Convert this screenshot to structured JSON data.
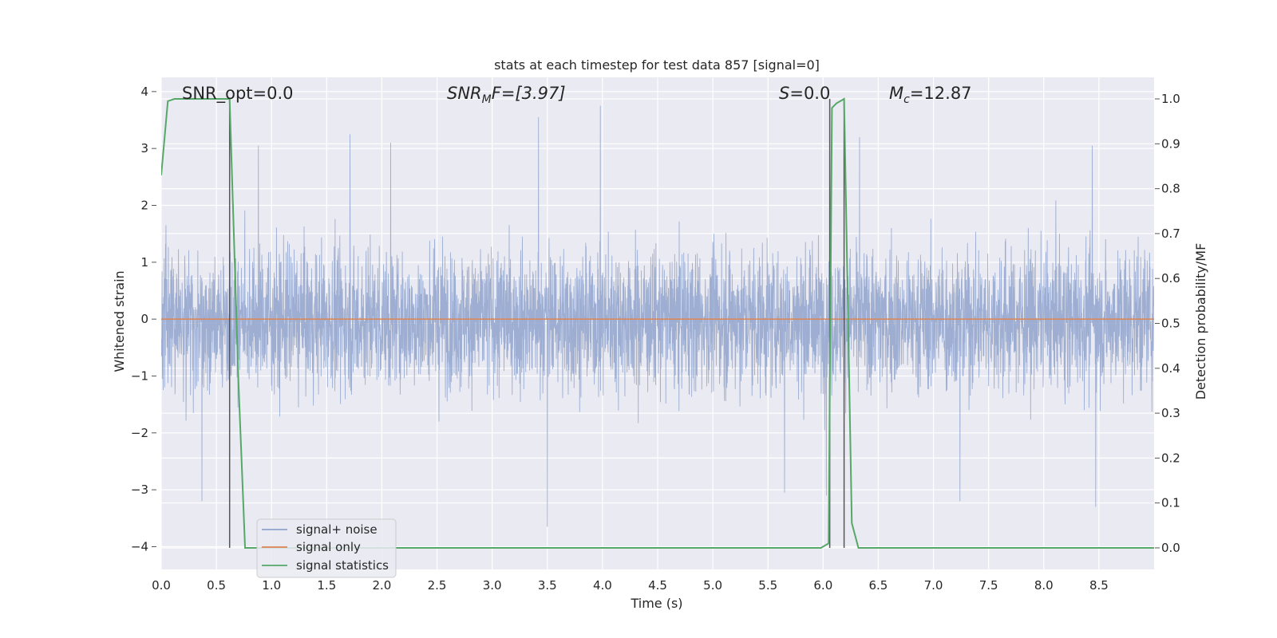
{
  "chart_data": {
    "type": "line",
    "title": "stats at each timestep for test data 857 [signal=0]",
    "xlabel": "Time (s)",
    "ylabel": "Whitened strain",
    "ylabel_right": "Detection probability/MF",
    "xlim": [
      0,
      9.0
    ],
    "ylim": [
      -4.4,
      4.25
    ],
    "ylim_right": [
      -0.048,
      1.048
    ],
    "x_ticks": [
      "0.0",
      "0.5",
      "1.0",
      "1.5",
      "2.0",
      "2.5",
      "3.0",
      "3.5",
      "4.0",
      "4.5",
      "5.0",
      "5.5",
      "6.0",
      "6.5",
      "7.0",
      "7.5",
      "8.0",
      "8.5"
    ],
    "y_ticks": [
      "−4",
      "−3",
      "−2",
      "−1",
      "0",
      "1",
      "2",
      "3",
      "4"
    ],
    "y_ticks_right": [
      "0.0",
      "0.1",
      "0.2",
      "0.3",
      "0.4",
      "0.5",
      "0.6",
      "0.7",
      "0.8",
      "0.9",
      "1.0"
    ],
    "grid": true,
    "legend_position": "lower-left",
    "annotations": {
      "snr_opt": "SNR_opt=0.0",
      "snr_mf_main": "SNR",
      "snr_mf_sub": "M",
      "snr_mf_rest": "F=[3.97]",
      "s_main": "S",
      "s_rest": "=0.0",
      "mc_main": "M",
      "mc_sub": "c",
      "mc_rest": "=12.87"
    },
    "series": [
      {
        "name": "signal+ noise",
        "color": "#8fa3cc",
        "sample_rate_hz": 512,
        "duration_s": 9.0,
        "typical_range": [
          -2.0,
          2.0
        ],
        "peaks": [
          [
            3.42,
            3.55
          ],
          [
            3.98,
            3.75
          ],
          [
            1.71,
            3.25
          ],
          [
            0.88,
            3.05
          ],
          [
            2.08,
            3.1
          ],
          [
            6.33,
            3.2
          ],
          [
            8.44,
            3.05
          ],
          [
            3.5,
            -3.65
          ],
          [
            8.47,
            -3.3
          ],
          [
            0.37,
            -3.2
          ],
          [
            6.03,
            -3.1
          ],
          [
            5.65,
            -3.05
          ],
          [
            7.24,
            -3.2
          ]
        ]
      },
      {
        "name": "signal only",
        "color": "#dd8452",
        "values": "0 at all times"
      },
      {
        "name": "signal statistics",
        "color": "#55a868",
        "axis": "right",
        "x": [
          0.0,
          0.06,
          0.12,
          0.2,
          0.62,
          0.7,
          0.76,
          5.98,
          6.05,
          6.08,
          6.12,
          6.19,
          6.26,
          6.32,
          9.0
        ],
        "y": [
          0.83,
          0.995,
          1.0,
          1.0,
          1.0,
          0.37,
          0.0,
          0.0,
          0.01,
          0.98,
          0.99,
          1.0,
          0.055,
          0.0,
          0.0
        ]
      }
    ],
    "vertical_markers": [
      {
        "x": 0.62,
        "y_top": 1.0,
        "color": "#555555"
      },
      {
        "x": 6.06,
        "y_top": 1.0,
        "color": "#555555"
      },
      {
        "x": 6.19,
        "y_top": 1.0,
        "color": "#555555"
      }
    ]
  }
}
